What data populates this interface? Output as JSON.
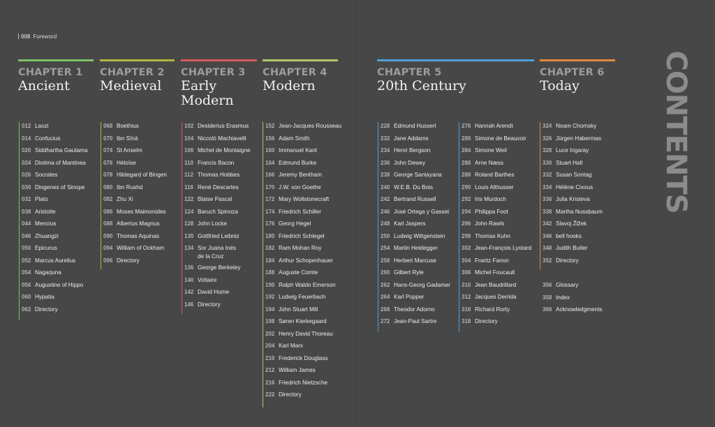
{
  "folio": {
    "page": "008",
    "label": "Foreword"
  },
  "side_title": "CONTENTS",
  "colors": {
    "ch1": "#7fc06a",
    "ch2": "#b5b43c",
    "ch3": "#d55a5e",
    "ch4": "#b5c46a",
    "ch5": "#4d9fd5",
    "ch6": "#e1883a"
  },
  "chapters": [
    {
      "num": "CHAPTER 1",
      "name": "Ancient"
    },
    {
      "num": "CHAPTER 2",
      "name": "Medieval"
    },
    {
      "num": "CHAPTER 3",
      "name": "Early\nModern"
    },
    {
      "num": "CHAPTER 4",
      "name": "Modern"
    },
    {
      "num": "CHAPTER 5",
      "name": "20th Century"
    },
    {
      "num": "CHAPTER 6",
      "name": "Today"
    }
  ],
  "columns": [
    {
      "entries": [
        [
          "012",
          "Laozi"
        ],
        [
          "014",
          "Confucius"
        ],
        [
          "020",
          "Siddhartha Gautama"
        ],
        [
          "024",
          "Diotima of Mantinea"
        ],
        [
          "026",
          "Socrates"
        ],
        [
          "030",
          "Diogenes of Sinope"
        ],
        [
          "032",
          "Plato"
        ],
        [
          "038",
          "Aristotle"
        ],
        [
          "044",
          "Mencius"
        ],
        [
          "046",
          "Zhuangzi"
        ],
        [
          "050",
          "Epicurus"
        ],
        [
          "052",
          "Marcus Aurelius"
        ],
        [
          "054",
          "Nagarjuna"
        ],
        [
          "056",
          "Augustine of Hippo"
        ],
        [
          "060",
          "Hypatia"
        ],
        [
          "062",
          "Directory"
        ]
      ]
    },
    {
      "entries": [
        [
          "068",
          "Boethius"
        ],
        [
          "070",
          "Ibn Sīnā"
        ],
        [
          "074",
          "St Anselm"
        ],
        [
          "076",
          "Héloïse"
        ],
        [
          "078",
          "Hildegard of Bingen"
        ],
        [
          "080",
          "Ibn Rushd"
        ],
        [
          "082",
          "Zhu Xi"
        ],
        [
          "086",
          "Moses Maimonides"
        ],
        [
          "088",
          "Albertus Magnus"
        ],
        [
          "090",
          "Thomas Aquinas"
        ],
        [
          "094",
          "William of Ockham"
        ],
        [
          "096",
          "Directory"
        ]
      ]
    },
    {
      "entries": [
        [
          "102",
          "Desiderius Erasmus"
        ],
        [
          "104",
          "Niccolò Machiavelli"
        ],
        [
          "106",
          "Michel de Montaigne"
        ],
        [
          "110",
          "Francis Bacon"
        ],
        [
          "112",
          "Thomas Hobbes"
        ],
        [
          "116",
          "René Descartes"
        ],
        [
          "122",
          "Blaise Pascal"
        ],
        [
          "124",
          "Baruch Spinoza"
        ],
        [
          "128",
          "John Locke"
        ],
        [
          "130",
          "Gottfried Leibniz"
        ],
        [
          "134",
          "Sor Juana Inés\nde la Cruz"
        ],
        [
          "136",
          "George Berkeley"
        ],
        [
          "140",
          "Voltaire"
        ],
        [
          "142",
          "David Hume"
        ],
        [
          "146",
          "Directory"
        ]
      ]
    },
    {
      "entries": [
        [
          "152",
          "Jean-Jacques Rousseau"
        ],
        [
          "156",
          "Adam Smith"
        ],
        [
          "160",
          "Immanuel Kant"
        ],
        [
          "164",
          "Edmund Burke"
        ],
        [
          "166",
          "Jeremy Bentham"
        ],
        [
          "170",
          "J.W. von Goethe"
        ],
        [
          "172",
          "Mary Wollstonecraft"
        ],
        [
          "174",
          "Friedrich Schiller"
        ],
        [
          "176",
          "Georg Hegel"
        ],
        [
          "180",
          "Friedrich Schlegel"
        ],
        [
          "182",
          "Ram Mohan Roy"
        ],
        [
          "184",
          "Arthur Schopenhauer"
        ],
        [
          "188",
          "Auguste Comte"
        ],
        [
          "190",
          "Ralph Waldo Emerson"
        ],
        [
          "192",
          "Ludwig Feuerbach"
        ],
        [
          "194",
          "John Stuart Mill"
        ],
        [
          "198",
          "Søren Kierkegaard"
        ],
        [
          "202",
          "Henry David Thoreau"
        ],
        [
          "204",
          "Karl Marx"
        ],
        [
          "210",
          "Frederick Douglass"
        ],
        [
          "212",
          "William James"
        ],
        [
          "216",
          "Friedrich Nietzsche"
        ],
        [
          "222",
          "Directory"
        ]
      ]
    },
    {
      "entries": [
        [
          "228",
          "Edmund Husserl"
        ],
        [
          "232",
          "Jane Addams"
        ],
        [
          "234",
          "Henri Bergson"
        ],
        [
          "236",
          "John Dewey"
        ],
        [
          "238",
          "George Santayana"
        ],
        [
          "240",
          "W.E.B. Du Bois"
        ],
        [
          "242",
          "Bertrand Russell"
        ],
        [
          "246",
          "José Ortega y Gasset"
        ],
        [
          "248",
          "Karl Jaspers"
        ],
        [
          "250",
          "Ludwig Wittgenstein"
        ],
        [
          "254",
          "Martin Heidegger"
        ],
        [
          "258",
          "Herbert Marcuse"
        ],
        [
          "260",
          "Gilbert Ryle"
        ],
        [
          "262",
          "Hans-Georg Gadamer"
        ],
        [
          "264",
          "Karl Popper"
        ],
        [
          "268",
          "Theodor Adorno"
        ],
        [
          "272",
          "Jean-Paul Sartre"
        ]
      ]
    },
    {
      "entries": [
        [
          "276",
          "Hannah Arendt"
        ],
        [
          "280",
          "Simone de Beauvoir"
        ],
        [
          "284",
          "Simone Weil"
        ],
        [
          "286",
          "Arne Næss"
        ],
        [
          "288",
          "Roland Barthes"
        ],
        [
          "290",
          "Louis Althusser"
        ],
        [
          "292",
          "Iris Murdoch"
        ],
        [
          "294",
          "Philippa Foot"
        ],
        [
          "296",
          "John Rawls"
        ],
        [
          "298",
          "Thomas Kuhn"
        ],
        [
          "302",
          "Jean-François Lyotard"
        ],
        [
          "304",
          "Frantz Fanon"
        ],
        [
          "306",
          "Michel Foucault"
        ],
        [
          "310",
          "Jean Baudrillard"
        ],
        [
          "312",
          "Jacques Derrida"
        ],
        [
          "316",
          "Richard Rorty"
        ],
        [
          "318",
          "Directory"
        ]
      ]
    },
    {
      "entries": [
        [
          "324",
          "Noam Chomsky"
        ],
        [
          "326",
          "Jürgen Habermas"
        ],
        [
          "328",
          "Luce Irigaray"
        ],
        [
          "330",
          "Stuart Hall"
        ],
        [
          "332",
          "Susan Sontag"
        ],
        [
          "334",
          "Hélène Cixous"
        ],
        [
          "336",
          "Julia Kristeva"
        ],
        [
          "338",
          "Martha Nussbaum"
        ],
        [
          "342",
          "Slavoj Žižek"
        ],
        [
          "346",
          "bell hooks"
        ],
        [
          "348",
          "Judith Butler"
        ],
        [
          "352",
          "Directory"
        ]
      ]
    },
    {
      "entries": [
        [
          "356",
          "Glossary"
        ],
        [
          "358",
          "Index"
        ],
        [
          "366",
          "Acknowledgments"
        ]
      ]
    }
  ]
}
